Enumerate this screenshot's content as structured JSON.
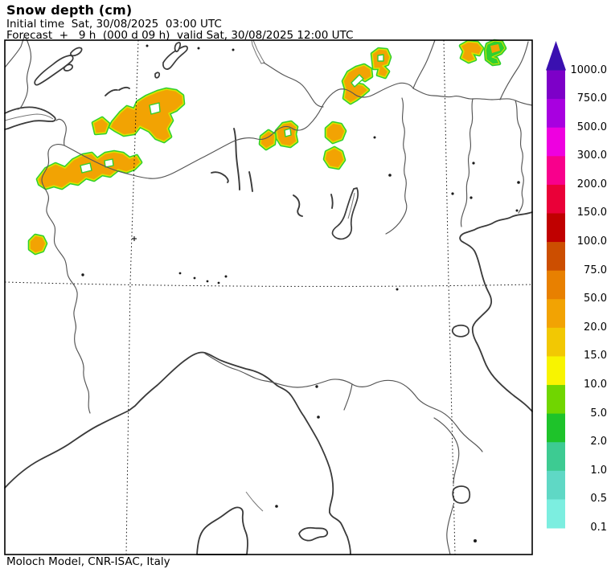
{
  "header": {
    "title": "Snow depth (cm)",
    "initial_time_line": "Initial time  Sat, 30/08/2025  03:00 UTC",
    "forecast_line": "Forecast  +   9 h  (000 d 09 h)  valid Sat, 30/08/2025 12:00 UTC"
  },
  "footer": {
    "credit": "Moloch Model, CNR-ISAC, Italy"
  },
  "colorbar": {
    "orientation": "vertical",
    "labels_top_to_bottom": [
      "1000.0",
      "750.0",
      "500.0",
      "300.0",
      "200.0",
      "150.0",
      "100.0",
      "75.0",
      "50.0",
      "20.0",
      "15.0",
      "10.0",
      "5.0",
      "2.0",
      "1.0",
      "0.5",
      "0.1"
    ],
    "band_colors_top_to_bottom": [
      "#7D00C8",
      "#A800E0",
      "#EE00E0",
      "#F8008C",
      "#EA0038",
      "#C00000",
      "#CC4E00",
      "#E88000",
      "#F2A303",
      "#F2C803",
      "#F8F400",
      "#70D600",
      "#1EC32A",
      "#3DCB92",
      "#5FD8C5",
      "#7CEEE0"
    ],
    "arrow_color": "#3A10B0"
  },
  "map": {
    "snow_fill_color": "#F2A303",
    "snow_contour_color": "#2FD02F",
    "snow_inner_ring_color": "#D8E300",
    "coast_color": "#3A3A3A",
    "border_color": "#555555",
    "graticule_color": "#111111",
    "frame_color": "#000000"
  }
}
